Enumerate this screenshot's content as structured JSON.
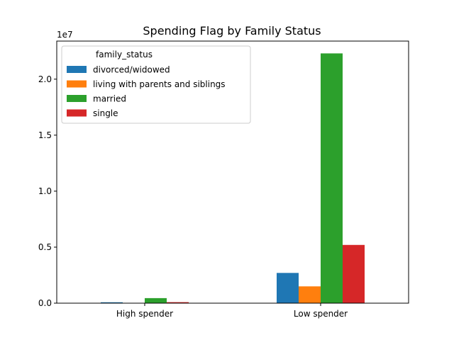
{
  "chart_data": {
    "type": "bar",
    "title": "Spending Flag by Family Status",
    "xlabel": "",
    "ylabel": "",
    "y_scale_label": "1e7",
    "categories": [
      "High spender",
      "Low spender"
    ],
    "y_ticks": [
      {
        "value": 0,
        "label": "0.0"
      },
      {
        "value": 5000000,
        "label": "0.5"
      },
      {
        "value": 10000000,
        "label": "1.0"
      },
      {
        "value": 15000000,
        "label": "1.5"
      },
      {
        "value": 20000000,
        "label": "2.0"
      }
    ],
    "ylim": [
      0,
      23400000
    ],
    "grid": false,
    "legend": {
      "title": "family_status",
      "placement": "top-left"
    },
    "series": [
      {
        "name": "divorced/widowed",
        "color": "#1f77b4",
        "values": [
          80000,
          2700000
        ]
      },
      {
        "name": "living with parents and siblings",
        "color": "#ff7f0e",
        "values": [
          15000,
          1500000
        ]
      },
      {
        "name": "married",
        "color": "#2ca02c",
        "values": [
          450000,
          22300000
        ]
      },
      {
        "name": "single",
        "color": "#d62728",
        "values": [
          90000,
          5200000
        ]
      }
    ]
  }
}
